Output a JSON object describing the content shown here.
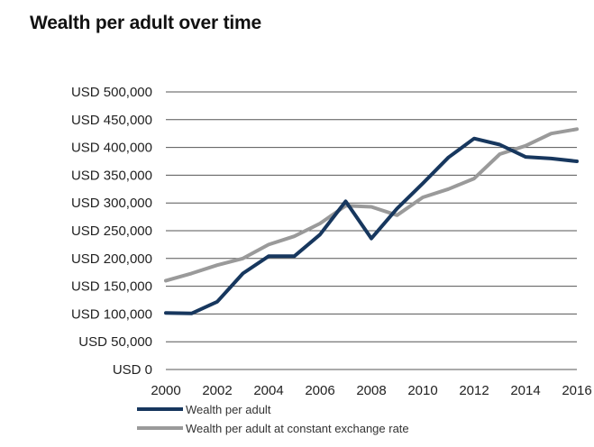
{
  "title": "Wealth per adult over time",
  "chart_data": {
    "type": "line",
    "title": "Wealth per adult over time",
    "xlabel": "",
    "ylabel": "",
    "x": [
      2000,
      2001,
      2002,
      2003,
      2004,
      2005,
      2006,
      2007,
      2008,
      2009,
      2010,
      2011,
      2012,
      2013,
      2014,
      2015,
      2016
    ],
    "xticks": [
      "2000",
      "2002",
      "2004",
      "2006",
      "2008",
      "2010",
      "2012",
      "2014",
      "2016"
    ],
    "xlim": [
      2000,
      2016
    ],
    "ylim": [
      0,
      500000
    ],
    "yticks": [
      "USD 0",
      "USD 50,000",
      "USD 100,000",
      "USD 150,000",
      "USD 200,000",
      "USD 250,000",
      "USD 300,000",
      "USD 350,000",
      "USD 400,000",
      "USD 450,000",
      "USD 500,000"
    ],
    "grid": true,
    "legend_position": "bottom-left",
    "series": [
      {
        "name": "Wealth per adult",
        "color": "#17375e",
        "values": [
          102000,
          101000,
          122000,
          173000,
          204000,
          204000,
          243000,
          303000,
          236000,
          290000,
          335000,
          382000,
          416000,
          405000,
          383000,
          380000,
          375000
        ]
      },
      {
        "name": "Wealth per adult at constant exchange rate",
        "color": "#9a9a9a",
        "values": [
          160000,
          173000,
          188000,
          200000,
          225000,
          240000,
          263000,
          295000,
          293000,
          278000,
          310000,
          325000,
          344000,
          388000,
          403000,
          425000,
          433000
        ]
      }
    ]
  }
}
